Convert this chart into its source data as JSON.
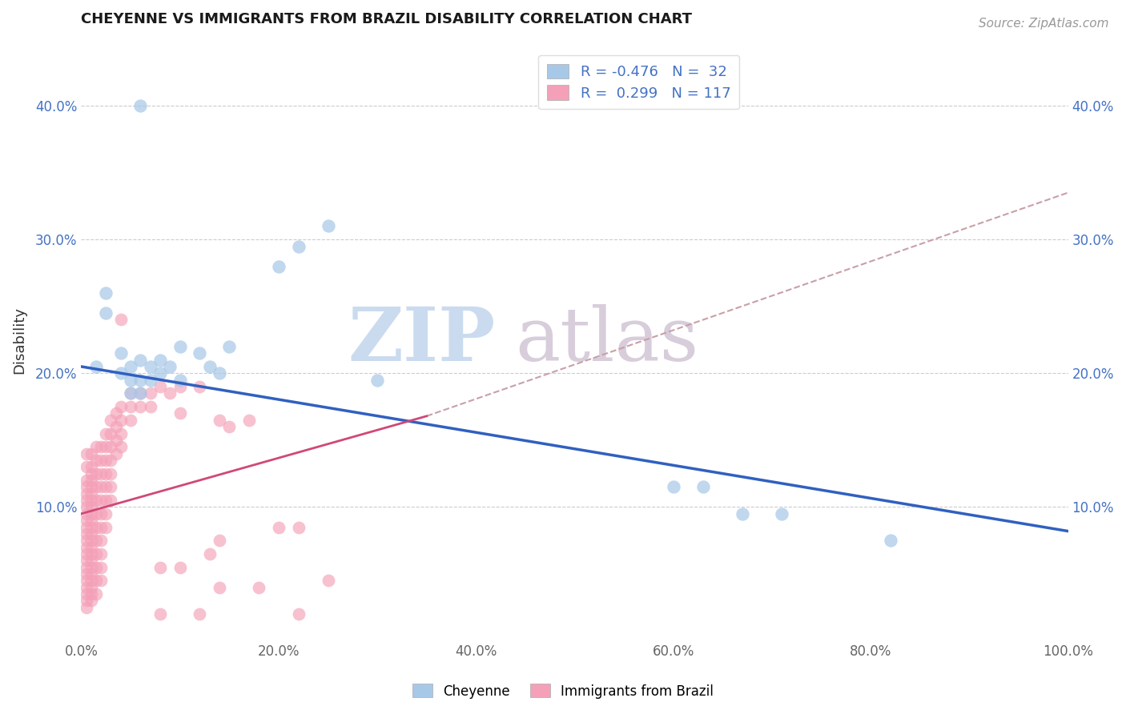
{
  "title": "CHEYENNE VS IMMIGRANTS FROM BRAZIL DISABILITY CORRELATION CHART",
  "source": "Source: ZipAtlas.com",
  "ylabel": "Disability",
  "xlabel": "",
  "watermark_zip": "ZIP",
  "watermark_atlas": "atlas",
  "legend_cheyenne": "Cheyenne",
  "legend_brazil": "Immigrants from Brazil",
  "R_cheyenne": -0.476,
  "N_cheyenne": 32,
  "R_brazil": 0.299,
  "N_brazil": 117,
  "cheyenne_color": "#A8C8E8",
  "brazil_color": "#F4A0B8",
  "cheyenne_line_color": "#3060C0",
  "brazil_line_color": "#D04878",
  "trend_line_color": "#C8A0A8",
  "xlim": [
    0.0,
    1.0
  ],
  "ylim": [
    0.0,
    0.45
  ],
  "x_ticks": [
    0.0,
    0.2,
    0.4,
    0.6,
    0.8,
    1.0
  ],
  "y_ticks": [
    0.1,
    0.2,
    0.3,
    0.4
  ],
  "background_color": "#FFFFFF",
  "cheyenne_line_x0": 0.0,
  "cheyenne_line_y0": 0.205,
  "cheyenne_line_x1": 1.0,
  "cheyenne_line_y1": 0.082,
  "brazil_line_x0": 0.0,
  "brazil_line_y0": 0.095,
  "brazil_line_x1": 0.35,
  "brazil_line_y1": 0.168,
  "dashed_line_x0": 0.35,
  "dashed_line_y0": 0.168,
  "dashed_line_x1": 1.0,
  "dashed_line_y1": 0.335,
  "cheyenne_points": [
    [
      0.015,
      0.205
    ],
    [
      0.025,
      0.26
    ],
    [
      0.025,
      0.245
    ],
    [
      0.04,
      0.215
    ],
    [
      0.04,
      0.2
    ],
    [
      0.05,
      0.205
    ],
    [
      0.05,
      0.195
    ],
    [
      0.05,
      0.185
    ],
    [
      0.06,
      0.21
    ],
    [
      0.06,
      0.195
    ],
    [
      0.06,
      0.185
    ],
    [
      0.07,
      0.205
    ],
    [
      0.07,
      0.195
    ],
    [
      0.08,
      0.21
    ],
    [
      0.08,
      0.2
    ],
    [
      0.09,
      0.205
    ],
    [
      0.1,
      0.22
    ],
    [
      0.1,
      0.195
    ],
    [
      0.12,
      0.215
    ],
    [
      0.13,
      0.205
    ],
    [
      0.14,
      0.2
    ],
    [
      0.15,
      0.22
    ],
    [
      0.2,
      0.28
    ],
    [
      0.22,
      0.295
    ],
    [
      0.25,
      0.31
    ],
    [
      0.3,
      0.195
    ],
    [
      0.06,
      0.4
    ],
    [
      0.6,
      0.115
    ],
    [
      0.63,
      0.115
    ],
    [
      0.67,
      0.095
    ],
    [
      0.71,
      0.095
    ],
    [
      0.82,
      0.075
    ]
  ],
  "brazil_points": [
    [
      0.005,
      0.14
    ],
    [
      0.005,
      0.13
    ],
    [
      0.005,
      0.12
    ],
    [
      0.005,
      0.115
    ],
    [
      0.005,
      0.11
    ],
    [
      0.005,
      0.105
    ],
    [
      0.005,
      0.1
    ],
    [
      0.005,
      0.095
    ],
    [
      0.005,
      0.09
    ],
    [
      0.005,
      0.085
    ],
    [
      0.005,
      0.08
    ],
    [
      0.005,
      0.075
    ],
    [
      0.005,
      0.07
    ],
    [
      0.005,
      0.065
    ],
    [
      0.005,
      0.06
    ],
    [
      0.005,
      0.055
    ],
    [
      0.005,
      0.05
    ],
    [
      0.005,
      0.045
    ],
    [
      0.005,
      0.04
    ],
    [
      0.005,
      0.035
    ],
    [
      0.005,
      0.03
    ],
    [
      0.005,
      0.025
    ],
    [
      0.01,
      0.14
    ],
    [
      0.01,
      0.13
    ],
    [
      0.01,
      0.125
    ],
    [
      0.01,
      0.12
    ],
    [
      0.01,
      0.115
    ],
    [
      0.01,
      0.11
    ],
    [
      0.01,
      0.105
    ],
    [
      0.01,
      0.1
    ],
    [
      0.01,
      0.095
    ],
    [
      0.01,
      0.09
    ],
    [
      0.01,
      0.085
    ],
    [
      0.01,
      0.08
    ],
    [
      0.01,
      0.075
    ],
    [
      0.01,
      0.07
    ],
    [
      0.01,
      0.065
    ],
    [
      0.01,
      0.06
    ],
    [
      0.01,
      0.055
    ],
    [
      0.01,
      0.05
    ],
    [
      0.01,
      0.045
    ],
    [
      0.01,
      0.04
    ],
    [
      0.01,
      0.035
    ],
    [
      0.01,
      0.03
    ],
    [
      0.015,
      0.145
    ],
    [
      0.015,
      0.135
    ],
    [
      0.015,
      0.125
    ],
    [
      0.015,
      0.115
    ],
    [
      0.015,
      0.105
    ],
    [
      0.015,
      0.095
    ],
    [
      0.015,
      0.085
    ],
    [
      0.015,
      0.075
    ],
    [
      0.015,
      0.065
    ],
    [
      0.015,
      0.055
    ],
    [
      0.015,
      0.045
    ],
    [
      0.015,
      0.035
    ],
    [
      0.02,
      0.145
    ],
    [
      0.02,
      0.135
    ],
    [
      0.02,
      0.125
    ],
    [
      0.02,
      0.115
    ],
    [
      0.02,
      0.105
    ],
    [
      0.02,
      0.095
    ],
    [
      0.02,
      0.085
    ],
    [
      0.02,
      0.075
    ],
    [
      0.02,
      0.065
    ],
    [
      0.02,
      0.055
    ],
    [
      0.02,
      0.045
    ],
    [
      0.025,
      0.155
    ],
    [
      0.025,
      0.145
    ],
    [
      0.025,
      0.135
    ],
    [
      0.025,
      0.125
    ],
    [
      0.025,
      0.115
    ],
    [
      0.025,
      0.105
    ],
    [
      0.025,
      0.095
    ],
    [
      0.025,
      0.085
    ],
    [
      0.03,
      0.165
    ],
    [
      0.03,
      0.155
    ],
    [
      0.03,
      0.145
    ],
    [
      0.03,
      0.135
    ],
    [
      0.03,
      0.125
    ],
    [
      0.03,
      0.115
    ],
    [
      0.03,
      0.105
    ],
    [
      0.035,
      0.17
    ],
    [
      0.035,
      0.16
    ],
    [
      0.035,
      0.15
    ],
    [
      0.035,
      0.14
    ],
    [
      0.04,
      0.175
    ],
    [
      0.04,
      0.165
    ],
    [
      0.04,
      0.155
    ],
    [
      0.04,
      0.145
    ],
    [
      0.05,
      0.185
    ],
    [
      0.05,
      0.175
    ],
    [
      0.05,
      0.165
    ],
    [
      0.06,
      0.185
    ],
    [
      0.06,
      0.175
    ],
    [
      0.07,
      0.185
    ],
    [
      0.07,
      0.175
    ],
    [
      0.08,
      0.19
    ],
    [
      0.09,
      0.185
    ],
    [
      0.1,
      0.19
    ],
    [
      0.12,
      0.19
    ],
    [
      0.04,
      0.24
    ],
    [
      0.1,
      0.17
    ],
    [
      0.14,
      0.165
    ],
    [
      0.15,
      0.16
    ],
    [
      0.17,
      0.165
    ],
    [
      0.08,
      0.055
    ],
    [
      0.1,
      0.055
    ],
    [
      0.13,
      0.065
    ],
    [
      0.14,
      0.04
    ],
    [
      0.18,
      0.04
    ],
    [
      0.14,
      0.075
    ],
    [
      0.2,
      0.085
    ],
    [
      0.22,
      0.085
    ],
    [
      0.08,
      0.02
    ],
    [
      0.12,
      0.02
    ],
    [
      0.22,
      0.02
    ],
    [
      0.25,
      0.045
    ]
  ]
}
